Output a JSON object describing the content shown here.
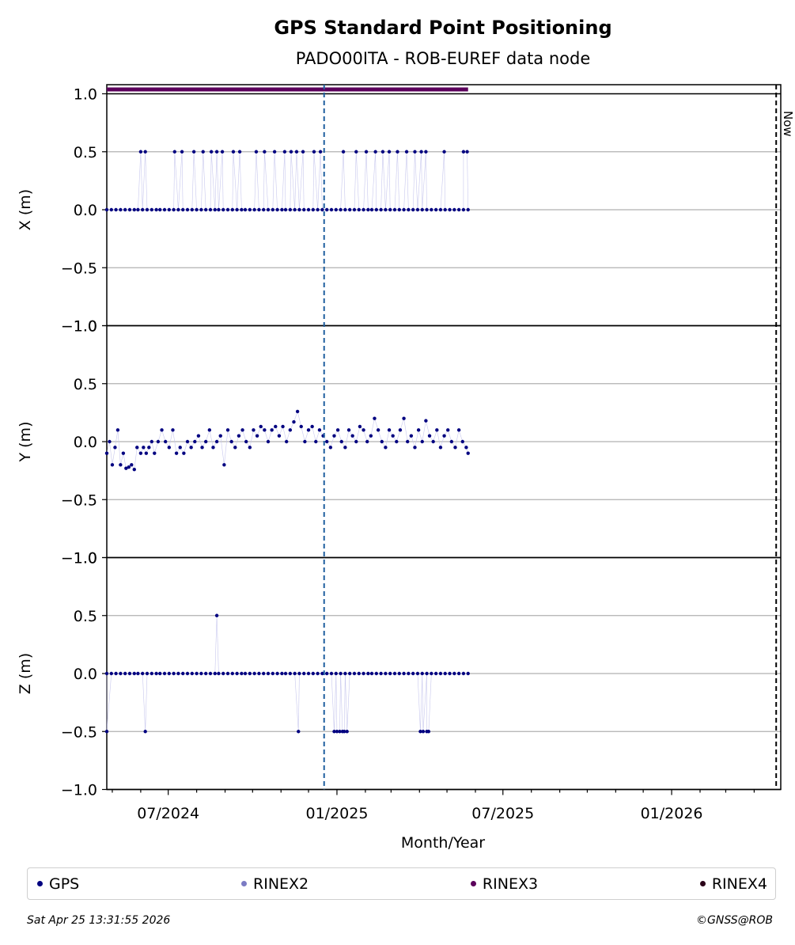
{
  "chart_data": {
    "type": "scatter",
    "title": "GPS Standard Point Positioning",
    "subtitle": "PADO00ITA - ROB-EUREF data node",
    "xlabel": "Month/Year",
    "x_tick_labels": [
      "07/2024",
      "01/2025",
      "07/2025",
      "01/2026"
    ],
    "x_range": [
      "2024-04-25",
      "2026-04-30"
    ],
    "marker_date": "2024-12-18",
    "now_date": "2026-04-25",
    "now_label": "Now",
    "y_ticks": [
      -1.0,
      -0.5,
      0.0,
      0.5,
      1.0
    ],
    "y_tick_labels": [
      "−1.0",
      "−0.5",
      "0.0",
      "0.5",
      "1.0"
    ],
    "grid": true,
    "rinex3_bar": {
      "start": "2024-04-25",
      "end": "2025-05-24",
      "color": "#5b005b"
    },
    "panels": [
      {
        "ylabel": "X (m)",
        "ylim": [
          -1.0,
          1.0
        ],
        "series": [
          {
            "name": "GPS",
            "color": "#000080",
            "x": [
              "2024-04-25",
              "2024-04-30",
              "2024-05-05",
              "2024-05-10",
              "2024-05-15",
              "2024-05-20",
              "2024-05-25",
              "2024-05-29",
              "2024-06-03",
              "2024-06-08",
              "2024-06-13",
              "2024-06-18",
              "2024-06-22",
              "2024-06-27",
              "2024-07-02",
              "2024-07-07",
              "2024-07-12",
              "2024-07-17",
              "2024-07-22",
              "2024-07-27",
              "2024-08-01",
              "2024-08-06",
              "2024-08-11",
              "2024-08-16",
              "2024-08-21",
              "2024-08-25",
              "2024-08-30",
              "2024-09-04",
              "2024-09-09",
              "2024-09-14",
              "2024-09-19",
              "2024-09-23",
              "2024-09-28",
              "2024-10-03",
              "2024-10-08",
              "2024-10-13",
              "2024-10-18",
              "2024-10-23",
              "2024-10-28",
              "2024-11-02",
              "2024-11-06",
              "2024-11-11",
              "2024-11-16",
              "2024-11-21",
              "2024-11-26",
              "2024-12-01",
              "2024-12-06",
              "2024-12-11",
              "2024-12-16",
              "2024-12-21",
              "2024-12-26",
              "2024-12-31",
              "2025-01-05",
              "2025-01-10",
              "2025-01-15",
              "2025-01-20",
              "2025-01-25",
              "2025-01-30",
              "2025-02-04",
              "2025-02-08",
              "2025-02-13",
              "2025-02-18",
              "2025-02-23",
              "2025-02-28",
              "2025-03-05",
              "2025-03-10",
              "2025-03-15",
              "2025-03-20",
              "2025-03-25",
              "2025-03-30",
              "2025-04-04",
              "2025-04-09",
              "2025-04-14",
              "2025-04-19",
              "2025-04-24",
              "2025-04-29",
              "2025-05-04",
              "2025-05-09",
              "2025-05-14",
              "2025-05-19",
              "2025-05-24",
              "2024-06-01",
              "2024-06-06",
              "2024-07-08",
              "2024-07-16",
              "2024-07-29",
              "2024-08-08",
              "2024-08-17",
              "2024-08-23",
              "2024-08-29",
              "2024-09-10",
              "2024-09-17",
              "2024-10-05",
              "2024-10-14",
              "2024-10-25",
              "2024-11-05",
              "2024-11-12",
              "2024-11-18",
              "2024-11-25",
              "2024-12-07",
              "2024-12-14",
              "2025-01-08",
              "2025-01-22",
              "2025-02-02",
              "2025-02-12",
              "2025-02-20",
              "2025-02-27",
              "2025-03-08",
              "2025-03-18",
              "2025-03-27",
              "2025-04-03",
              "2025-04-08",
              "2025-04-28",
              "2025-05-19",
              "2025-05-23"
            ],
            "y": [
              0,
              0,
              0,
              0,
              0,
              0,
              0,
              0,
              0,
              0,
              0,
              0,
              0,
              0,
              0,
              0,
              0,
              0,
              0,
              0,
              0,
              0,
              0,
              0,
              0,
              0,
              0,
              0,
              0,
              0,
              0,
              0,
              0,
              0,
              0,
              0,
              0,
              0,
              0,
              0,
              0,
              0,
              0,
              0,
              0,
              0,
              0,
              0,
              0,
              0,
              0,
              0,
              0,
              0,
              0,
              0,
              0,
              0,
              0,
              0,
              0,
              0,
              0,
              0,
              0,
              0,
              0,
              0,
              0,
              0,
              0,
              0,
              0,
              0,
              0,
              0,
              0,
              0,
              0,
              0,
              0,
              0.5,
              0.5,
              0.5,
              0.5,
              0.5,
              0.5,
              0.5,
              0.5,
              0.5,
              0.5,
              0.5,
              0.5,
              0.5,
              0.5,
              0.5,
              0.5,
              0.5,
              0.5,
              0.5,
              0.5,
              0.5,
              0.5,
              0.5,
              0.5,
              0.5,
              0.5,
              0.5,
              0.5,
              0.5,
              0.5,
              0.5,
              0.5,
              0.5,
              0.5
            ]
          }
        ]
      },
      {
        "ylabel": "Y (m)",
        "ylim": [
          -1.0,
          1.0
        ],
        "series": [
          {
            "name": "GPS",
            "color": "#000080",
            "x": [
              "2024-04-25",
              "2024-04-28",
              "2024-05-01",
              "2024-05-04",
              "2024-05-07",
              "2024-05-10",
              "2024-05-13",
              "2024-05-16",
              "2024-05-19",
              "2024-05-22",
              "2024-05-25",
              "2024-05-28",
              "2024-06-01",
              "2024-06-04",
              "2024-06-07",
              "2024-06-10",
              "2024-06-13",
              "2024-06-16",
              "2024-06-20",
              "2024-06-24",
              "2024-06-28",
              "2024-07-02",
              "2024-07-06",
              "2024-07-10",
              "2024-07-14",
              "2024-07-18",
              "2024-07-22",
              "2024-07-26",
              "2024-07-30",
              "2024-08-03",
              "2024-08-07",
              "2024-08-11",
              "2024-08-15",
              "2024-08-19",
              "2024-08-23",
              "2024-08-27",
              "2024-08-31",
              "2024-09-04",
              "2024-09-08",
              "2024-09-12",
              "2024-09-16",
              "2024-09-20",
              "2024-09-24",
              "2024-09-28",
              "2024-10-02",
              "2024-10-06",
              "2024-10-10",
              "2024-10-14",
              "2024-10-18",
              "2024-10-22",
              "2024-10-26",
              "2024-10-30",
              "2024-11-03",
              "2024-11-07",
              "2024-11-11",
              "2024-11-15",
              "2024-11-19",
              "2024-11-23",
              "2024-11-27",
              "2024-12-01",
              "2024-12-05",
              "2024-12-09",
              "2024-12-13",
              "2024-12-17",
              "2024-12-21",
              "2024-12-25",
              "2024-12-29",
              "2025-01-02",
              "2025-01-06",
              "2025-01-10",
              "2025-01-14",
              "2025-01-18",
              "2025-01-22",
              "2025-01-26",
              "2025-01-30",
              "2025-02-03",
              "2025-02-07",
              "2025-02-11",
              "2025-02-15",
              "2025-02-19",
              "2025-02-23",
              "2025-02-27",
              "2025-03-03",
              "2025-03-07",
              "2025-03-11",
              "2025-03-15",
              "2025-03-19",
              "2025-03-23",
              "2025-03-27",
              "2025-03-31",
              "2025-04-04",
              "2025-04-08",
              "2025-04-12",
              "2025-04-16",
              "2025-04-20",
              "2025-04-24",
              "2025-04-28",
              "2025-05-02",
              "2025-05-06",
              "2025-05-10",
              "2025-05-14",
              "2025-05-18",
              "2025-05-22",
              "2025-05-24"
            ],
            "y": [
              -0.1,
              0,
              -0.2,
              -0.05,
              0.1,
              -0.2,
              -0.1,
              -0.23,
              -0.22,
              -0.2,
              -0.24,
              -0.05,
              -0.1,
              -0.05,
              -0.1,
              -0.05,
              0,
              -0.1,
              0,
              0.1,
              0,
              -0.05,
              0.1,
              -0.1,
              -0.05,
              -0.1,
              0,
              -0.05,
              0,
              0.05,
              -0.05,
              0,
              0.1,
              -0.05,
              0,
              0.05,
              -0.2,
              0.1,
              0,
              -0.05,
              0.05,
              0.1,
              0,
              -0.05,
              0.1,
              0.05,
              0.13,
              0.1,
              0,
              0.1,
              0.13,
              0.05,
              0.13,
              0,
              0.1,
              0.17,
              0.26,
              0.13,
              0,
              0.1,
              0.13,
              0,
              0.1,
              0.05,
              0,
              -0.05,
              0.05,
              0.1,
              0,
              -0.05,
              0.1,
              0.05,
              0,
              0.13,
              0.1,
              0,
              0.05,
              0.2,
              0.1,
              0,
              -0.05,
              0.1,
              0.05,
              0,
              0.1,
              0.2,
              0,
              0.05,
              -0.05,
              0.1,
              0,
              0.18,
              0.05,
              0,
              0.1,
              -0.05,
              0.05,
              0.1,
              0,
              -0.05,
              0.1,
              0,
              -0.05,
              -0.1
            ]
          }
        ]
      },
      {
        "ylabel": "Z (m)",
        "ylim": [
          -1.0,
          1.0
        ],
        "series": [
          {
            "name": "GPS",
            "color": "#000080",
            "x": [
              "2024-04-25",
              "2024-04-30",
              "2024-05-05",
              "2024-05-10",
              "2024-05-15",
              "2024-05-20",
              "2024-05-25",
              "2024-05-29",
              "2024-06-03",
              "2024-06-08",
              "2024-06-13",
              "2024-06-18",
              "2024-06-22",
              "2024-06-27",
              "2024-07-02",
              "2024-07-07",
              "2024-07-12",
              "2024-07-17",
              "2024-07-22",
              "2024-07-27",
              "2024-08-01",
              "2024-08-06",
              "2024-08-11",
              "2024-08-16",
              "2024-08-21",
              "2024-08-25",
              "2024-08-30",
              "2024-09-04",
              "2024-09-09",
              "2024-09-14",
              "2024-09-19",
              "2024-09-23",
              "2024-09-28",
              "2024-10-03",
              "2024-10-08",
              "2024-10-13",
              "2024-10-18",
              "2024-10-23",
              "2024-10-28",
              "2024-11-02",
              "2024-11-06",
              "2024-11-11",
              "2024-11-16",
              "2024-11-21",
              "2024-11-26",
              "2024-12-01",
              "2024-12-06",
              "2024-12-11",
              "2024-12-16",
              "2024-12-21",
              "2024-12-26",
              "2024-12-31",
              "2025-01-05",
              "2025-01-10",
              "2025-01-15",
              "2025-01-20",
              "2025-01-25",
              "2025-01-30",
              "2025-02-04",
              "2025-02-08",
              "2025-02-13",
              "2025-02-18",
              "2025-02-23",
              "2025-02-28",
              "2025-03-05",
              "2025-03-10",
              "2025-03-15",
              "2025-03-20",
              "2025-03-25",
              "2025-03-30",
              "2025-04-04",
              "2025-04-09",
              "2025-04-14",
              "2025-04-19",
              "2025-04-24",
              "2025-04-29",
              "2025-05-04",
              "2025-05-09",
              "2025-05-14",
              "2025-05-19",
              "2025-05-24",
              "2024-04-25",
              "2024-06-06",
              "2024-08-23",
              "2024-11-20",
              "2024-12-29",
              "2025-01-01",
              "2025-01-04",
              "2025-01-07",
              "2025-01-09",
              "2025-01-12",
              "2025-04-02",
              "2025-04-05",
              "2025-04-09",
              "2025-04-11"
            ],
            "y": [
              0,
              0,
              0,
              0,
              0,
              0,
              0,
              0,
              0,
              0,
              0,
              0,
              0,
              0,
              0,
              0,
              0,
              0,
              0,
              0,
              0,
              0,
              0,
              0,
              0,
              0,
              0,
              0,
              0,
              0,
              0,
              0,
              0,
              0,
              0,
              0,
              0,
              0,
              0,
              0,
              0,
              0,
              0,
              0,
              0,
              0,
              0,
              0,
              0,
              0,
              0,
              0,
              0,
              0,
              0,
              0,
              0,
              0,
              0,
              0,
              0,
              0,
              0,
              0,
              0,
              0,
              0,
              0,
              0,
              0,
              0,
              0,
              0,
              0,
              0,
              0,
              0,
              0,
              0,
              0,
              0,
              -0.5,
              -0.5,
              0.5,
              -0.5,
              -0.5,
              -0.5,
              -0.5,
              -0.5,
              -0.5,
              -0.5,
              -0.5,
              -0.5,
              -0.5,
              -0.5
            ]
          }
        ]
      }
    ],
    "legend": {
      "placement": "bottom",
      "entries": [
        {
          "name": "GPS",
          "color": "#000080"
        },
        {
          "name": "RINEX2",
          "color": "#7b7bc4"
        },
        {
          "name": "RINEX3",
          "color": "#5b005b"
        },
        {
          "name": "RINEX4",
          "color": "#2a0018"
        }
      ]
    }
  },
  "footer": {
    "timestamp": "Sat Apr 25 13:31:55 2026",
    "copyright": "©GNSS@ROB"
  },
  "colors": {
    "marker_line": "#1f5f9f",
    "grid": "#b0b0b0",
    "connector": "#c8c8ee"
  }
}
